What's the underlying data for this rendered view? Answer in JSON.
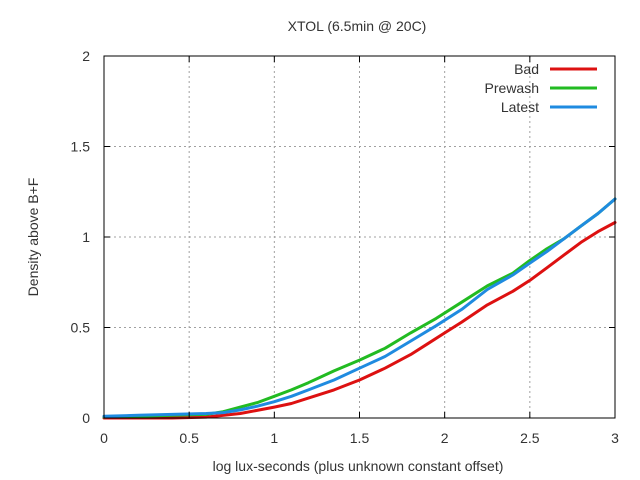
{
  "chart_data": {
    "type": "line",
    "title": "XTOL (6.5min @ 20C)",
    "xlabel": "log lux-seconds (plus unknown constant offset)",
    "ylabel": "Density above B+F",
    "xlim": [
      0,
      3
    ],
    "ylim": [
      0,
      2
    ],
    "xticks": [
      0,
      0.5,
      1,
      1.5,
      2,
      2.5,
      3
    ],
    "yticks": [
      0,
      0.5,
      1,
      1.5,
      2
    ],
    "xtick_labels": [
      "0",
      "0.5",
      "1",
      "1.5",
      "2",
      "2.5",
      "3"
    ],
    "ytick_labels": [
      "0",
      "0.5",
      "1",
      "1.5",
      "2"
    ],
    "grid": true,
    "legend_position": "top-right",
    "series": [
      {
        "name": "Bad",
        "color": "#dd1111",
        "points": [
          [
            0,
            0.0
          ],
          [
            0.2,
            0.0
          ],
          [
            0.4,
            0.0
          ],
          [
            0.6,
            0.005
          ],
          [
            0.8,
            0.025
          ],
          [
            1.0,
            0.06
          ],
          [
            1.1,
            0.08
          ],
          [
            1.2,
            0.11
          ],
          [
            1.35,
            0.155
          ],
          [
            1.5,
            0.21
          ],
          [
            1.65,
            0.275
          ],
          [
            1.8,
            0.35
          ],
          [
            1.9,
            0.41
          ],
          [
            2.0,
            0.47
          ],
          [
            2.1,
            0.53
          ],
          [
            2.25,
            0.625
          ],
          [
            2.4,
            0.7
          ],
          [
            2.5,
            0.76
          ],
          [
            2.6,
            0.83
          ],
          [
            2.7,
            0.9
          ],
          [
            2.8,
            0.97
          ],
          [
            2.9,
            1.03
          ],
          [
            3.0,
            1.08
          ]
        ]
      },
      {
        "name": "Prewash",
        "color": "#22bb22",
        "points": [
          [
            0,
            0.005
          ],
          [
            0.2,
            0.01
          ],
          [
            0.4,
            0.015
          ],
          [
            0.6,
            0.02
          ],
          [
            0.7,
            0.035
          ],
          [
            0.8,
            0.06
          ],
          [
            0.9,
            0.085
          ],
          [
            1.0,
            0.12
          ],
          [
            1.1,
            0.155
          ],
          [
            1.2,
            0.195
          ],
          [
            1.35,
            0.26
          ],
          [
            1.5,
            0.32
          ],
          [
            1.65,
            0.385
          ],
          [
            1.8,
            0.47
          ],
          [
            1.95,
            0.55
          ],
          [
            2.1,
            0.64
          ],
          [
            2.25,
            0.73
          ],
          [
            2.4,
            0.8
          ],
          [
            2.5,
            0.87
          ],
          [
            2.6,
            0.935
          ],
          [
            2.7,
            0.99
          ],
          [
            2.8,
            1.06
          ],
          [
            2.9,
            1.13
          ],
          [
            3.0,
            1.21
          ]
        ]
      },
      {
        "name": "Latest",
        "color": "#1f8be0",
        "points": [
          [
            0,
            0.01
          ],
          [
            0.2,
            0.015
          ],
          [
            0.4,
            0.02
          ],
          [
            0.6,
            0.025
          ],
          [
            0.7,
            0.03
          ],
          [
            0.8,
            0.045
          ],
          [
            0.9,
            0.065
          ],
          [
            1.0,
            0.09
          ],
          [
            1.1,
            0.12
          ],
          [
            1.2,
            0.155
          ],
          [
            1.35,
            0.21
          ],
          [
            1.5,
            0.275
          ],
          [
            1.65,
            0.34
          ],
          [
            1.8,
            0.425
          ],
          [
            1.95,
            0.51
          ],
          [
            2.1,
            0.6
          ],
          [
            2.25,
            0.71
          ],
          [
            2.4,
            0.79
          ],
          [
            2.5,
            0.855
          ],
          [
            2.6,
            0.92
          ],
          [
            2.7,
            0.99
          ],
          [
            2.8,
            1.06
          ],
          [
            2.9,
            1.13
          ],
          [
            3.0,
            1.21
          ]
        ]
      }
    ]
  }
}
